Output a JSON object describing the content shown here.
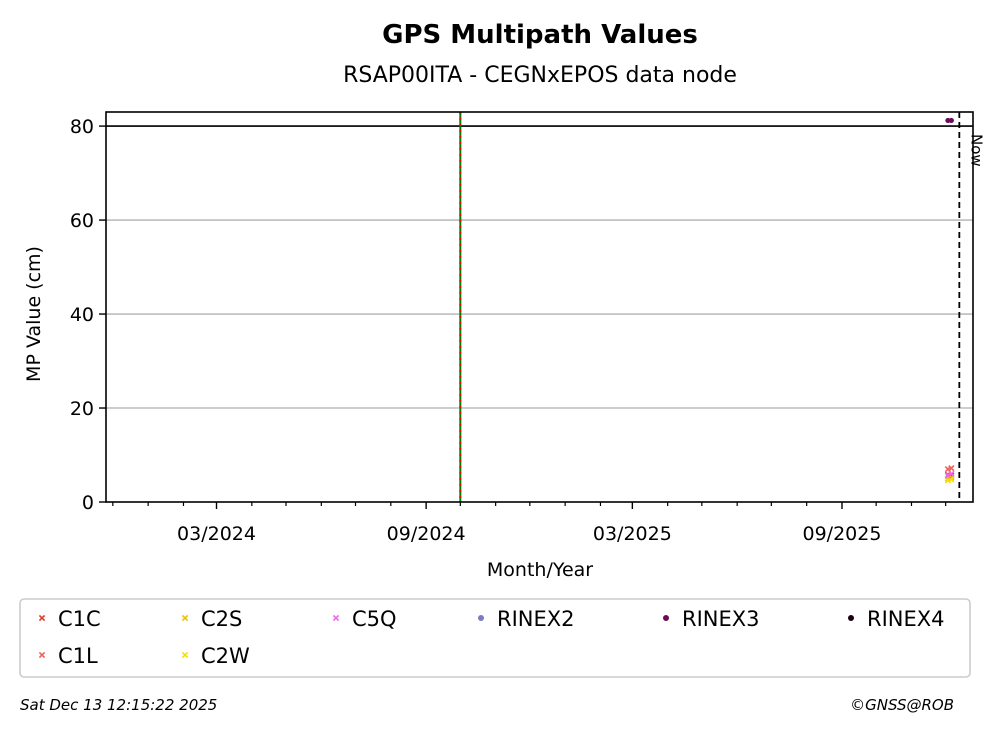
{
  "chart_data": {
    "type": "scatter",
    "title": "GPS Multipath Values",
    "subtitle": "RSAP00ITA - CEGNxEPOS data node",
    "xlabel": "Month/Year",
    "ylabel": "MP Value (cm)",
    "xlim": [
      "2023-11-25",
      "2025-12-25"
    ],
    "ylim": [
      0,
      83
    ],
    "x_tick_labels": [
      {
        "date": "2024-03-01",
        "label": "03/2024"
      },
      {
        "date": "2024-09-01",
        "label": "09/2024"
      },
      {
        "date": "2025-03-01",
        "label": "03/2025"
      },
      {
        "date": "2025-09-01",
        "label": "09/2025"
      }
    ],
    "x_minor_months": [
      "2023-12-01",
      "2024-01-01",
      "2024-02-01",
      "2024-04-01",
      "2024-05-01",
      "2024-06-01",
      "2024-07-01",
      "2024-08-01",
      "2024-10-01",
      "2024-11-01",
      "2024-12-01",
      "2025-01-01",
      "2025-02-01",
      "2025-04-01",
      "2025-05-01",
      "2025-06-01",
      "2025-07-01",
      "2025-08-01",
      "2025-10-01",
      "2025-11-01",
      "2025-12-01"
    ],
    "y_ticks": [
      0,
      20,
      40,
      60,
      80
    ],
    "grid": "horizontal",
    "threshold_line": 80,
    "event_line_date": "2024-10-01",
    "now_line": {
      "date": "2025-12-13",
      "label": "Now"
    },
    "legend_placement": "bottom",
    "series": [
      {
        "name": "C1C",
        "color": "#e8372a",
        "marker": "x",
        "points": [
          {
            "x": "2025-12-03",
            "y": 5.8
          },
          {
            "x": "2025-12-06",
            "y": 5.6
          }
        ]
      },
      {
        "name": "C1L",
        "color": "#f0605a",
        "marker": "x",
        "points": [
          {
            "x": "2025-12-03",
            "y": 7.0
          },
          {
            "x": "2025-12-06",
            "y": 7.2
          }
        ]
      },
      {
        "name": "C2S",
        "color": "#e6c300",
        "marker": "x",
        "points": [
          {
            "x": "2025-12-03",
            "y": 5.0
          },
          {
            "x": "2025-12-06",
            "y": 5.2
          }
        ]
      },
      {
        "name": "C2W",
        "color": "#f5e000",
        "marker": "x",
        "points": [
          {
            "x": "2025-12-03",
            "y": 4.6
          },
          {
            "x": "2025-12-06",
            "y": 4.8
          }
        ]
      },
      {
        "name": "C5Q",
        "color": "#ee66ee",
        "marker": "x",
        "points": [
          {
            "x": "2025-12-03",
            "y": 5.6
          },
          {
            "x": "2025-12-06",
            "y": 6.0
          }
        ]
      },
      {
        "name": "RINEX2",
        "color": "#7b7bbf",
        "marker": "dot",
        "points": []
      },
      {
        "name": "RINEX3",
        "color": "#6a0a5a",
        "marker": "dot",
        "points": [
          {
            "x": "2025-12-03",
            "y": 81.2
          },
          {
            "x": "2025-12-06",
            "y": 81.2
          }
        ]
      },
      {
        "name": "RINEX4",
        "color": "#1a0010",
        "marker": "dot",
        "points": []
      }
    ],
    "colors": {
      "grid": "#b0b0b0",
      "event_red": "#ff0000",
      "event_green": "#008000",
      "frame": "#000000"
    }
  },
  "footer": {
    "timestamp": "Sat Dec 13 12:15:22 2025",
    "credit": "©GNSS@ROB"
  }
}
